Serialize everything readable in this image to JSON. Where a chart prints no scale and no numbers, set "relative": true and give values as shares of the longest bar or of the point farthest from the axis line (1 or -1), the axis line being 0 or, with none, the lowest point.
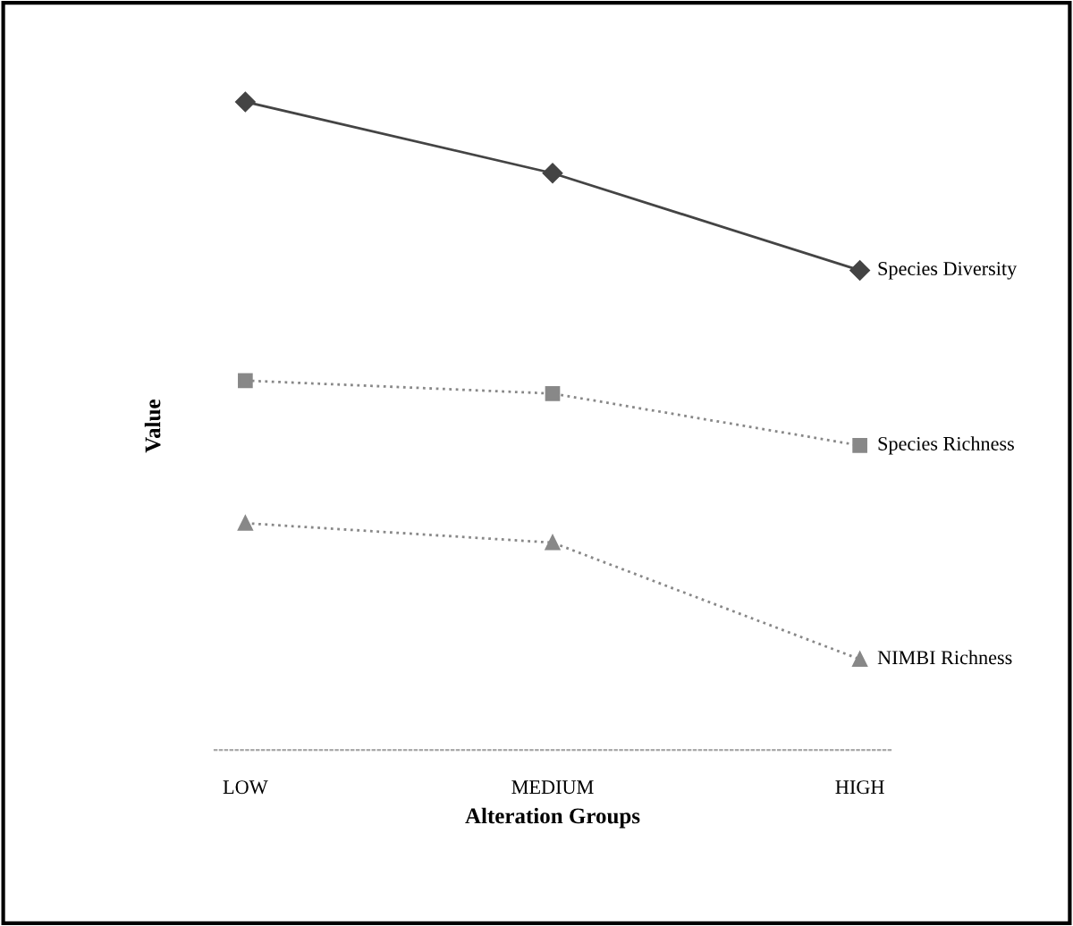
{
  "chart_data": {
    "type": "line",
    "relative": true,
    "xlabel": "Alteration Groups",
    "ylabel": "Value",
    "categories": [
      "LOW",
      "MEDIUM",
      "HIGH"
    ],
    "series": [
      {
        "name": "Species Diversity",
        "color": "#444444",
        "marker": "diamond",
        "line_style": "solid",
        "values": [
          1,
          0.89,
          0.74
        ]
      },
      {
        "name": "Species Richness",
        "color": "#888888",
        "marker": "square",
        "line_style": "dotted",
        "values": [
          0.57,
          0.55,
          0.47
        ]
      },
      {
        "name": "NIMBI Richness",
        "color": "#888888",
        "marker": "triangle",
        "line_style": "dotted",
        "values": [
          0.35,
          0.32,
          0.14
        ]
      }
    ],
    "legend": false,
    "grid": false
  }
}
